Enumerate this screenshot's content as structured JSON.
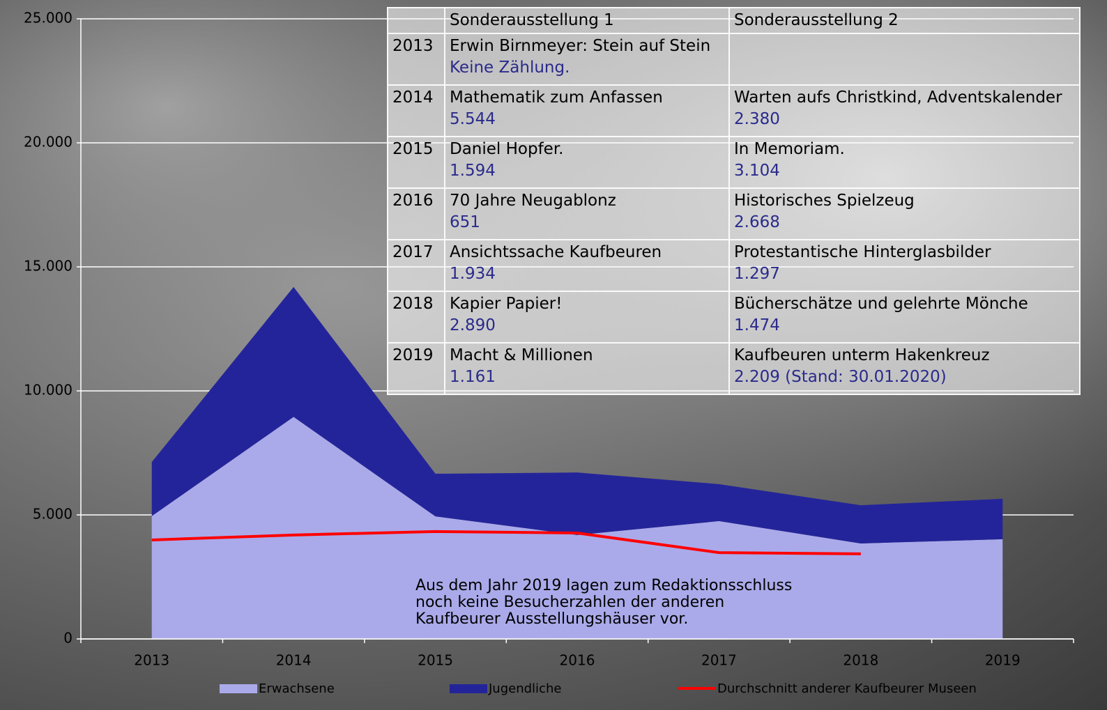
{
  "chart_data": {
    "type": "area",
    "categories": [
      "2013",
      "2014",
      "2015",
      "2016",
      "2017",
      "2018",
      "2019"
    ],
    "series": [
      {
        "name": "Erwachsene",
        "color": "#aaaaea",
        "type": "area",
        "values": [
          4950,
          8950,
          4940,
          4190,
          4750,
          3850,
          4020
        ]
      },
      {
        "name": "Jugendliche",
        "color": "#24249a",
        "type": "area",
        "values": [
          2180,
          5240,
          1720,
          2520,
          1490,
          1540,
          1630
        ]
      },
      {
        "name": "Durchschnitt anderer Kaufbeurer Museen",
        "color": "#ff0000",
        "type": "line",
        "values": [
          3990,
          4190,
          4330,
          4270,
          3480,
          3430,
          null
        ]
      }
    ],
    "ylim": [
      0,
      25000
    ],
    "yticks": [
      0,
      {
        "value": 5000,
        "label": "5.000"
      },
      {
        "value": 10000,
        "label": "10.000"
      },
      {
        "value": 15000,
        "label": "15.000"
      },
      {
        "value": 20000,
        "label": "20.000"
      },
      {
        "value": 25000,
        "label": "25.000"
      }
    ],
    "grid": true,
    "legend": "bottom",
    "annotation": [
      "Aus dem Jahr 2019 lagen zum Redaktionsschluss",
      "noch keine Besucherzahlen der anderen",
      "Kaufbeurer Ausstellungshäuser vor."
    ]
  },
  "table": {
    "columns": [
      "Sonderausstellung 1",
      "Sonderausstellung 2"
    ],
    "rows": [
      {
        "year": "2013",
        "s1": {
          "title": "Erwin Birnmeyer: Stein auf Stein",
          "visitors": "Keine Zählung."
        },
        "s2": null
      },
      {
        "year": "2014",
        "s1": {
          "title": "Mathematik zum Anfassen",
          "visitors": "5.544"
        },
        "s2": {
          "title": "Warten aufs Christkind,  Adventskalender",
          "visitors": "2.380"
        }
      },
      {
        "year": "2015",
        "s1": {
          "title": "Daniel Hopfer.",
          "visitors": "1.594"
        },
        "s2": {
          "title": "In Memoriam.",
          "visitors": "3.104"
        }
      },
      {
        "year": "2016",
        "s1": {
          "title": "70 Jahre Neugablonz",
          "visitors": "651"
        },
        "s2": {
          "title": "Historisches Spielzeug",
          "visitors": "2.668"
        }
      },
      {
        "year": "2017",
        "s1": {
          "title": "Ansichtssache Kaufbeuren",
          "visitors": "1.934"
        },
        "s2": {
          "title": "Protestantische Hinterglasbilder",
          "visitors": "1.297"
        }
      },
      {
        "year": "2018",
        "s1": {
          "title": "Kapier Papier!",
          "visitors": "2.890"
        },
        "s2": {
          "title": "Bücherschätze und gelehrte Mönche",
          "visitors": "1.474"
        }
      },
      {
        "year": "2019",
        "s1": {
          "title": "Macht & Millionen",
          "visitors": "1.161"
        },
        "s2": {
          "title": "Kaufbeuren unterm Hakenkreuz",
          "visitors": "2.209 (Stand: 30.01.2020)"
        }
      }
    ]
  }
}
